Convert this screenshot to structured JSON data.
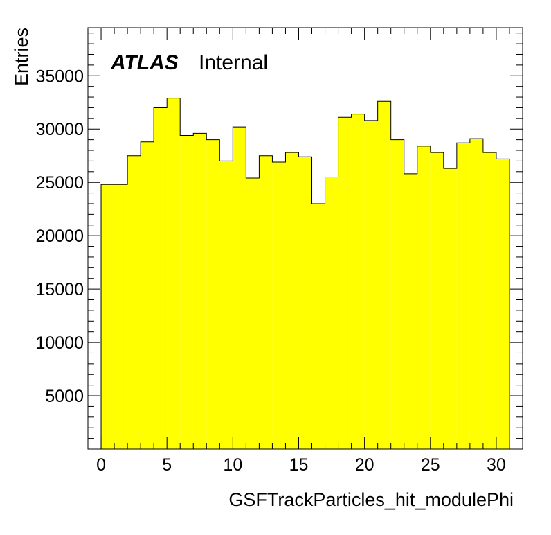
{
  "chart_data": {
    "type": "histogram",
    "title": "",
    "xlabel": "GSFTrackParticles_hit_modulePhi",
    "ylabel": "Entries",
    "label_bold": "ATLAS",
    "label_normal": "Internal",
    "xlim": [
      -1,
      32
    ],
    "ylim": [
      0,
      39500
    ],
    "x_ticks": [
      0,
      5,
      10,
      15,
      20,
      25,
      30
    ],
    "y_ticks": [
      5000,
      10000,
      15000,
      20000,
      25000,
      30000,
      35000
    ],
    "bin_edges": [
      0,
      1,
      2,
      3,
      4,
      5,
      6,
      7,
      8,
      9,
      10,
      11,
      12,
      13,
      14,
      15,
      16,
      17,
      18,
      19,
      20,
      21,
      22,
      23,
      24,
      25,
      26,
      27,
      28,
      29,
      30,
      31
    ],
    "values": [
      24800,
      24800,
      27500,
      28800,
      32000,
      32900,
      29400,
      29600,
      29000,
      27000,
      30200,
      25400,
      27500,
      26900,
      27800,
      27400,
      23000,
      25500,
      31100,
      31400,
      30800,
      32600,
      29000,
      25800,
      28400,
      27800,
      26300,
      28700,
      29100,
      27800,
      27200
    ],
    "fill_color": "#ffff00",
    "line_color": "#000000",
    "grid": false
  }
}
